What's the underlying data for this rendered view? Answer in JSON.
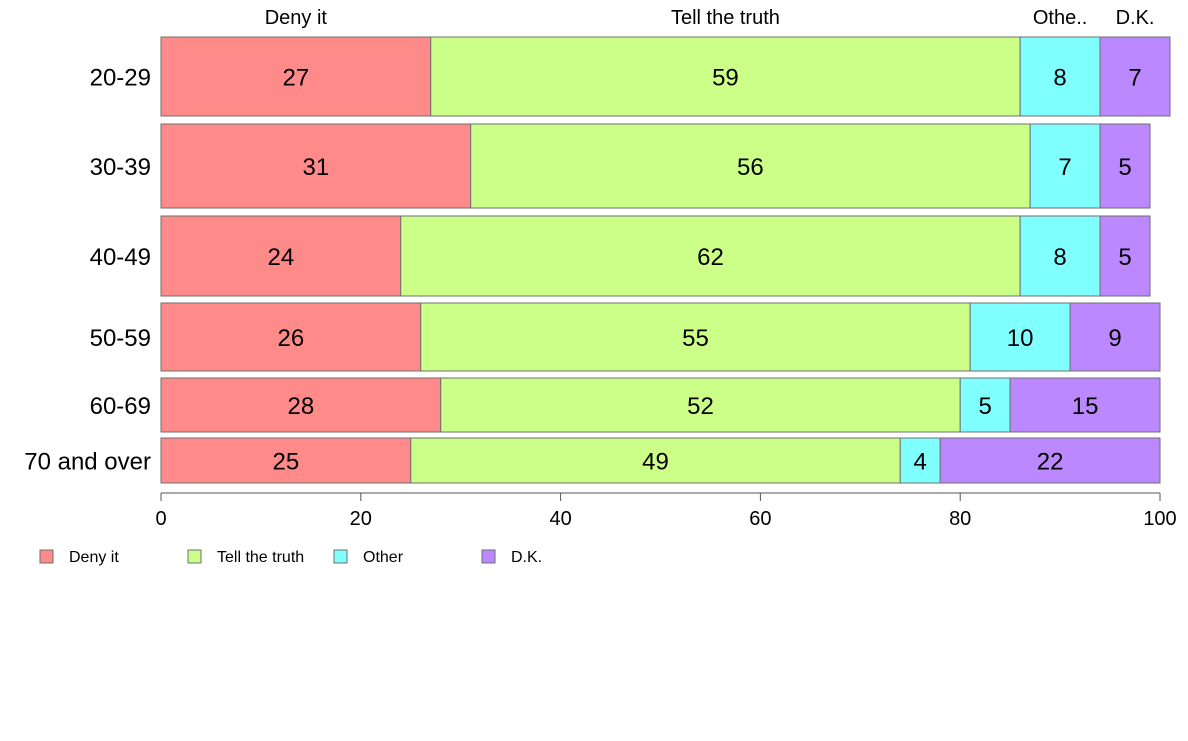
{
  "chart_data": {
    "type": "bar",
    "orientation": "horizontal",
    "stacked": true,
    "categories": [
      "20-29",
      "30-39",
      "40-49",
      "50-59",
      "60-69",
      "70 and over"
    ],
    "series": [
      {
        "name": "Deny it",
        "header": "Deny it",
        "color": "#ff8a8a",
        "values": [
          27,
          31,
          24,
          26,
          28,
          25
        ]
      },
      {
        "name": "Tell the truth",
        "header": "Tell the truth",
        "color": "#ccff88",
        "values": [
          59,
          56,
          62,
          55,
          52,
          49
        ]
      },
      {
        "name": "Other",
        "header": "Othe..",
        "color": "#80ffff",
        "values": [
          8,
          7,
          8,
          10,
          5,
          4
        ]
      },
      {
        "name": "D.K.",
        "header": "D.K.",
        "color": "#bb88ff",
        "values": [
          7,
          5,
          5,
          9,
          15,
          22
        ]
      }
    ],
    "xlim": [
      0,
      100
    ],
    "xticks": [
      "0",
      "20",
      "40",
      "60",
      "80",
      "100"
    ],
    "legend_position": "bottom-left",
    "grid": false
  }
}
